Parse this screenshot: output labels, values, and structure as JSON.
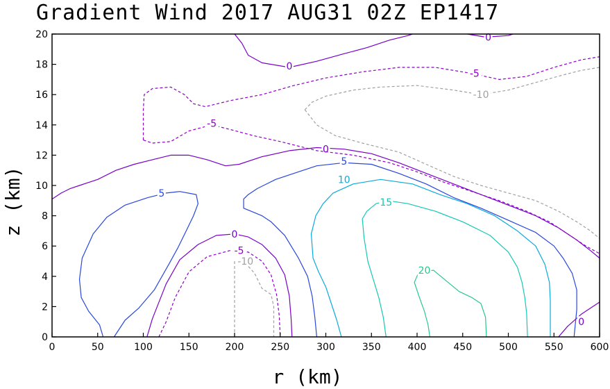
{
  "chart_data": {
    "type": "contour",
    "title": "Gradient Wind 2017 AUG31 02Z  EP1417",
    "xlabel": "r (km)",
    "ylabel": "z (km)",
    "xlim": [
      0,
      600
    ],
    "ylim": [
      0,
      20
    ],
    "x_ticks": [
      0,
      50,
      100,
      150,
      200,
      250,
      300,
      350,
      400,
      450,
      500,
      550,
      600
    ],
    "y_ticks": [
      0,
      2,
      4,
      6,
      8,
      10,
      12,
      14,
      16,
      18,
      20
    ],
    "grid": false,
    "levels": [
      {
        "value": -10,
        "label": "-10",
        "color": "#a0a0a0",
        "dashed": true
      },
      {
        "value": -5,
        "label": "-5",
        "color": "#8c00c8",
        "dashed": true
      },
      {
        "value": 0,
        "label": "0",
        "color": "#7800c8",
        "dashed": false
      },
      {
        "value": 5,
        "label": "5",
        "color": "#2846dc",
        "dashed": false
      },
      {
        "value": 10,
        "label": "10",
        "color": "#0aaadc",
        "dashed": false
      },
      {
        "value": 15,
        "label": "15",
        "color": "#14c8b4",
        "dashed": false
      },
      {
        "value": 20,
        "label": "20",
        "color": "#28c88c",
        "dashed": false
      }
    ],
    "contours": [
      {
        "level": 0,
        "points": [
          [
            0,
            9.1
          ],
          [
            10,
            9.5
          ],
          [
            20,
            9.8
          ],
          [
            30,
            10.0
          ],
          [
            50,
            10.4
          ],
          [
            70,
            11.0
          ],
          [
            90,
            11.4
          ],
          [
            110,
            11.7
          ],
          [
            130,
            12.0
          ],
          [
            150,
            12.0
          ],
          [
            170,
            11.7
          ],
          [
            190,
            11.3
          ],
          [
            205,
            11.4
          ],
          [
            230,
            11.9
          ],
          [
            260,
            12.3
          ],
          [
            290,
            12.5
          ],
          [
            320,
            12.4
          ],
          [
            350,
            12.1
          ],
          [
            380,
            11.5
          ],
          [
            410,
            10.8
          ],
          [
            440,
            10.1
          ],
          [
            470,
            9.4
          ],
          [
            500,
            8.7
          ],
          [
            530,
            8.0
          ],
          [
            555,
            7.2
          ],
          [
            575,
            6.4
          ],
          [
            590,
            5.7
          ],
          [
            600,
            5.2
          ]
        ],
        "label_at": [
          300,
          12.4
        ]
      },
      {
        "level": 0,
        "points": [
          [
            104,
            0
          ],
          [
            110,
            1.2
          ],
          [
            125,
            3.5
          ],
          [
            140,
            5.1
          ],
          [
            160,
            6.1
          ],
          [
            180,
            6.7
          ],
          [
            200,
            6.8
          ],
          [
            215,
            6.6
          ],
          [
            230,
            6.1
          ],
          [
            245,
            5.2
          ],
          [
            255,
            4.1
          ],
          [
            260,
            2.7
          ],
          [
            262,
            1.2
          ],
          [
            263,
            0
          ]
        ],
        "label_at": [
          200,
          6.8
        ]
      },
      {
        "level": 0,
        "points": [
          [
            200,
            20
          ],
          [
            208,
            19.4
          ],
          [
            215,
            18.6
          ],
          [
            230,
            18.1
          ],
          [
            260,
            17.8
          ],
          [
            290,
            18.2
          ],
          [
            320,
            18.7
          ],
          [
            345,
            19.1
          ],
          [
            370,
            19.6
          ],
          [
            390,
            19.9
          ],
          [
            395,
            20
          ]
        ],
        "label_at": [
          260,
          17.9
        ]
      },
      {
        "level": 0,
        "points": [
          [
            455,
            20
          ],
          [
            475,
            19.8
          ],
          [
            500,
            19.9
          ],
          [
            505,
            20
          ]
        ],
        "label_at": [
          478,
          19.8
        ]
      },
      {
        "level": 0,
        "points": [
          [
            555,
            0
          ],
          [
            565,
            0.7
          ],
          [
            580,
            1.5
          ],
          [
            600,
            2.3
          ]
        ],
        "label_at": [
          580,
          1.0
        ]
      },
      {
        "level": -5,
        "points": [
          [
            100,
            13.0
          ],
          [
            100,
            15.0
          ],
          [
            101,
            16.0
          ],
          [
            110,
            16.4
          ],
          [
            130,
            16.5
          ],
          [
            145,
            16.0
          ],
          [
            155,
            15.4
          ],
          [
            168,
            15.2
          ],
          [
            195,
            15.6
          ],
          [
            230,
            16.0
          ],
          [
            265,
            16.6
          ],
          [
            300,
            17.1
          ],
          [
            340,
            17.5
          ],
          [
            380,
            17.8
          ],
          [
            420,
            17.8
          ],
          [
            460,
            17.4
          ],
          [
            490,
            17.0
          ],
          [
            520,
            17.2
          ],
          [
            550,
            17.8
          ],
          [
            580,
            18.3
          ],
          [
            600,
            18.5
          ]
        ],
        "label_at": [
          463,
          17.4
        ]
      },
      {
        "level": -5,
        "points": [
          [
            100,
            13.0
          ],
          [
            110,
            12.8
          ],
          [
            130,
            12.9
          ],
          [
            150,
            13.6
          ],
          [
            175,
            14.0
          ],
          [
            195,
            13.7
          ],
          [
            220,
            13.3
          ],
          [
            250,
            12.9
          ],
          [
            290,
            12.3
          ],
          [
            330,
            12.0
          ],
          [
            370,
            11.5
          ],
          [
            400,
            10.9
          ],
          [
            430,
            10.2
          ],
          [
            460,
            9.6
          ],
          [
            490,
            9.0
          ],
          [
            520,
            8.3
          ],
          [
            545,
            7.6
          ],
          [
            565,
            6.8
          ],
          [
            585,
            6.0
          ],
          [
            600,
            5.5
          ]
        ],
        "label_at": [
          175,
          14.1
        ]
      },
      {
        "level": -5,
        "points": [
          [
            117,
            0
          ],
          [
            125,
            1.0
          ],
          [
            135,
            2.6
          ],
          [
            150,
            4.3
          ],
          [
            170,
            5.3
          ],
          [
            195,
            5.7
          ],
          [
            215,
            5.6
          ],
          [
            230,
            5.0
          ],
          [
            240,
            4.1
          ],
          [
            246,
            2.8
          ],
          [
            249,
            1.4
          ],
          [
            250,
            0
          ]
        ],
        "label_at": [
          205,
          5.7
        ]
      },
      {
        "level": -10,
        "points": [
          [
            277,
            15.0
          ],
          [
            285,
            15.5
          ],
          [
            300,
            15.9
          ],
          [
            330,
            16.3
          ],
          [
            360,
            16.5
          ],
          [
            400,
            16.6
          ],
          [
            440,
            16.3
          ],
          [
            470,
            16.0
          ],
          [
            500,
            16.3
          ],
          [
            530,
            16.8
          ],
          [
            560,
            17.3
          ],
          [
            580,
            17.6
          ],
          [
            600,
            17.8
          ]
        ],
        "label_at": [
          470,
          16.0
        ]
      },
      {
        "level": -10,
        "points": [
          [
            277,
            15.0
          ],
          [
            290,
            14.0
          ],
          [
            310,
            13.3
          ],
          [
            340,
            12.8
          ],
          [
            380,
            12.2
          ],
          [
            410,
            11.4
          ],
          [
            440,
            10.6
          ],
          [
            470,
            10.0
          ],
          [
            500,
            9.5
          ],
          [
            530,
            9.0
          ],
          [
            555,
            8.3
          ],
          [
            575,
            7.6
          ],
          [
            590,
            7.0
          ],
          [
            600,
            6.5
          ]
        ],
        "label_at": null
      },
      {
        "level": -10,
        "points": [
          [
            200,
            0
          ],
          [
            200,
            5.0
          ],
          [
            205,
            5.1
          ],
          [
            210,
            5.0
          ],
          [
            222,
            4.2
          ],
          [
            230,
            3.2
          ],
          [
            240,
            2.8
          ],
          [
            243,
            2.0
          ],
          [
            243,
            1.0
          ],
          [
            243,
            0
          ]
        ],
        "label_at": [
          212,
          5.0
        ]
      },
      {
        "level": 5,
        "points": [
          [
            56,
            0
          ],
          [
            52,
            0.8
          ],
          [
            40,
            1.7
          ],
          [
            32,
            2.6
          ],
          [
            30,
            3.8
          ],
          [
            33,
            5.2
          ],
          [
            45,
            6.8
          ],
          [
            60,
            7.9
          ],
          [
            80,
            8.7
          ],
          [
            105,
            9.2
          ],
          [
            125,
            9.5
          ],
          [
            140,
            9.6
          ],
          [
            158,
            9.4
          ],
          [
            160,
            8.8
          ],
          [
            155,
            8.0
          ],
          [
            147,
            7.0
          ],
          [
            138,
            5.9
          ],
          [
            128,
            4.8
          ],
          [
            112,
            3.1
          ],
          [
            95,
            1.9
          ],
          [
            80,
            1.1
          ],
          [
            68,
            0
          ]
        ],
        "label_at": [
          120,
          9.5
        ]
      },
      {
        "level": 5,
        "points": [
          [
            290,
            0
          ],
          [
            288,
            1.3
          ],
          [
            285,
            2.7
          ],
          [
            280,
            4.0
          ],
          [
            270,
            5.2
          ],
          [
            255,
            6.7
          ],
          [
            240,
            7.6
          ],
          [
            230,
            8.0
          ],
          [
            210,
            8.5
          ],
          [
            210,
            9.1
          ],
          [
            215,
            9.4
          ],
          [
            225,
            9.8
          ],
          [
            245,
            10.4
          ],
          [
            265,
            10.8
          ],
          [
            290,
            11.3
          ],
          [
            320,
            11.5
          ],
          [
            350,
            11.4
          ],
          [
            380,
            10.8
          ],
          [
            410,
            10.1
          ],
          [
            440,
            9.2
          ],
          [
            470,
            8.5
          ],
          [
            500,
            7.7
          ],
          [
            530,
            6.9
          ],
          [
            550,
            6.0
          ],
          [
            560,
            5.2
          ],
          [
            570,
            4.2
          ],
          [
            575,
            3.1
          ],
          [
            575,
            1.8
          ],
          [
            572,
            0
          ]
        ],
        "label_at": [
          320,
          11.6
        ]
      },
      {
        "level": 10,
        "points": [
          [
            317,
            0
          ],
          [
            312,
            1.1
          ],
          [
            306,
            2.2
          ],
          [
            300,
            3.3
          ],
          [
            292,
            4.3
          ],
          [
            286,
            5.2
          ],
          [
            284,
            6.8
          ],
          [
            289,
            8.0
          ],
          [
            297,
            8.8
          ],
          [
            308,
            9.5
          ],
          [
            330,
            10.1
          ],
          [
            360,
            10.4
          ],
          [
            395,
            10.1
          ],
          [
            425,
            9.4
          ],
          [
            455,
            8.8
          ],
          [
            485,
            8.0
          ],
          [
            510,
            7.0
          ],
          [
            530,
            6.0
          ],
          [
            540,
            4.8
          ],
          [
            545,
            3.6
          ],
          [
            546,
            2.4
          ],
          [
            546,
            1.2
          ],
          [
            546,
            0
          ]
        ],
        "label_at": [
          320,
          10.4
        ]
      },
      {
        "level": 15,
        "points": [
          [
            366,
            0
          ],
          [
            363,
            1.3
          ],
          [
            358,
            2.6
          ],
          [
            352,
            3.8
          ],
          [
            346,
            5.0
          ],
          [
            342,
            6.5
          ],
          [
            340,
            7.8
          ],
          [
            345,
            8.3
          ],
          [
            355,
            8.8
          ],
          [
            368,
            9.0
          ],
          [
            390,
            8.8
          ],
          [
            420,
            8.3
          ],
          [
            450,
            7.6
          ],
          [
            480,
            6.7
          ],
          [
            500,
            5.6
          ],
          [
            510,
            4.6
          ],
          [
            515,
            3.6
          ],
          [
            518,
            2.6
          ],
          [
            520,
            1.6
          ],
          [
            521,
            0
          ]
        ],
        "label_at": [
          366,
          8.9
        ]
      },
      {
        "level": 20,
        "points": [
          [
            414,
            0
          ],
          [
            412,
            0.8
          ],
          [
            408,
            1.7
          ],
          [
            402,
            2.7
          ],
          [
            397,
            3.6
          ],
          [
            402,
            4.3
          ],
          [
            418,
            4.4
          ],
          [
            430,
            3.8
          ],
          [
            446,
            3.0
          ],
          [
            460,
            2.6
          ],
          [
            470,
            2.2
          ],
          [
            475,
            1.3
          ],
          [
            476,
            0
          ]
        ],
        "label_at": [
          408,
          4.4
        ]
      }
    ]
  }
}
